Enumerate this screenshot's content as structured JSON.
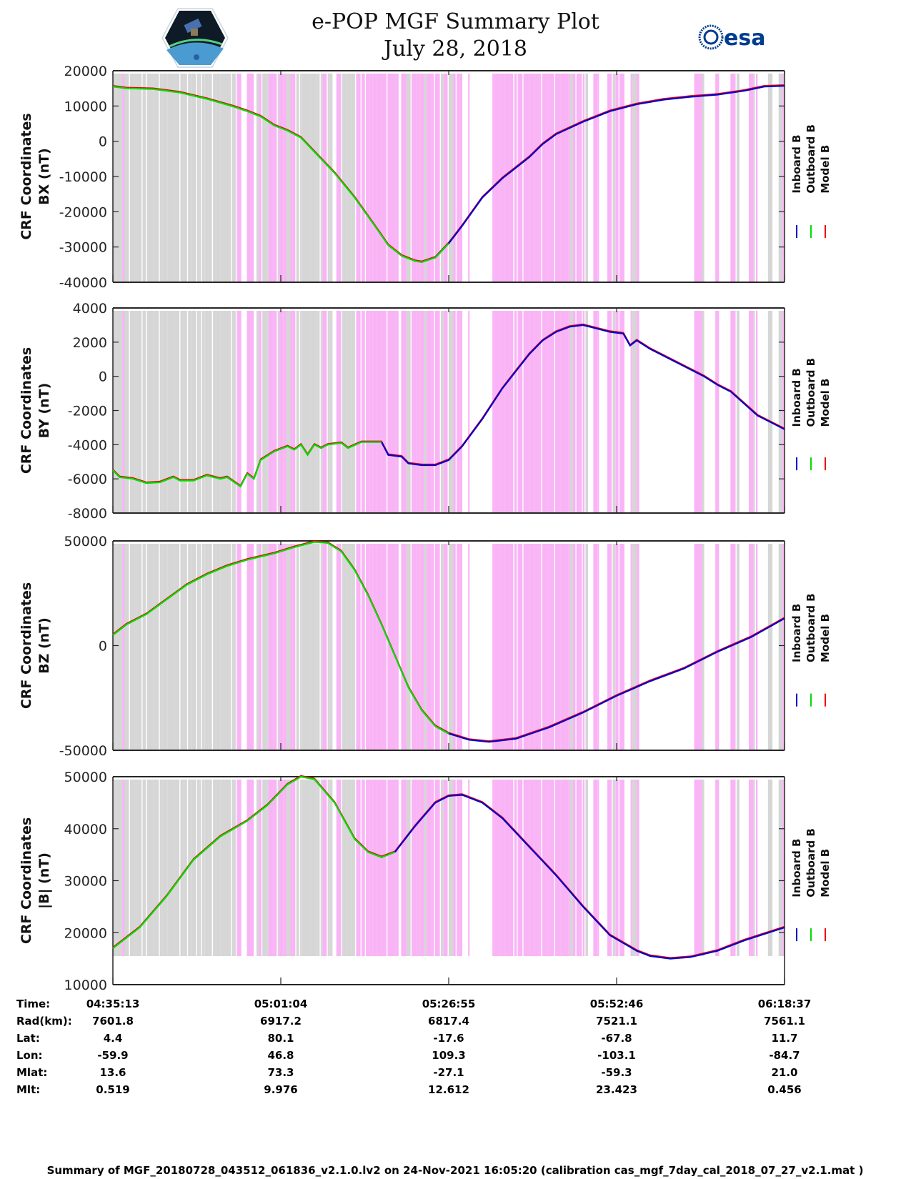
{
  "header": {
    "title": "e-POP MGF Summary Plot",
    "subtitle": "July 28, 2018",
    "logos": [
      "cassiope-mission-logo",
      "esa-logo"
    ],
    "esa_text": "esa"
  },
  "colors": {
    "inboard": "#0000cc",
    "outboard": "#00dd00",
    "model": "#ee0000",
    "shade_pink": "#f9b4f6",
    "shade_gray": "#d6d6d6",
    "axis": "#262626"
  },
  "legend": {
    "entries": [
      {
        "label": "Inboard B",
        "color_key": "inboard"
      },
      {
        "label": "Outboard B",
        "color_key": "outboard"
      },
      {
        "label": "Model B",
        "color_key": "model"
      }
    ]
  },
  "chart_data": [
    {
      "type": "line",
      "title": "",
      "ylabel": "CRF Coordinates\nBX (nT)",
      "ylabel_lines": [
        "CRF Coordinates",
        "BX (nT)"
      ],
      "xlim": [
        0,
        1
      ],
      "ylim": [
        -40000,
        20000
      ],
      "yticks": [
        20000,
        10000,
        0,
        -10000,
        -20000,
        -30000,
        -40000
      ],
      "ytick_labels": [
        "20000",
        "10000",
        "0",
        "-10000",
        "-20000",
        "-30000",
        "-40000"
      ],
      "shade_range": [
        -40000,
        20000
      ],
      "outboard_until": 0.5,
      "series_points": [
        [
          0.0,
          15500
        ],
        [
          0.02,
          15000
        ],
        [
          0.06,
          14800
        ],
        [
          0.1,
          13800
        ],
        [
          0.14,
          12000
        ],
        [
          0.18,
          9800
        ],
        [
          0.2,
          8500
        ],
        [
          0.22,
          7000
        ],
        [
          0.24,
          4500
        ],
        [
          0.26,
          3000
        ],
        [
          0.28,
          1000
        ],
        [
          0.3,
          -3000
        ],
        [
          0.33,
          -9000
        ],
        [
          0.36,
          -16000
        ],
        [
          0.39,
          -24000
        ],
        [
          0.41,
          -29500
        ],
        [
          0.43,
          -32500
        ],
        [
          0.45,
          -34000
        ],
        [
          0.46,
          -34300
        ],
        [
          0.48,
          -33000
        ],
        [
          0.5,
          -29000
        ],
        [
          0.52,
          -24000
        ],
        [
          0.55,
          -16000
        ],
        [
          0.58,
          -10500
        ],
        [
          0.6,
          -7500
        ],
        [
          0.62,
          -4500
        ],
        [
          0.64,
          -800
        ],
        [
          0.66,
          2000
        ],
        [
          0.7,
          5500
        ],
        [
          0.74,
          8500
        ],
        [
          0.78,
          10500
        ],
        [
          0.82,
          11800
        ],
        [
          0.86,
          12600
        ],
        [
          0.9,
          13200
        ],
        [
          0.94,
          14300
        ],
        [
          0.97,
          15500
        ],
        [
          1.0,
          15700
        ]
      ]
    },
    {
      "type": "line",
      "ylabel_lines": [
        "CRF Coordinates",
        "BY (nT)"
      ],
      "xlim": [
        0,
        1
      ],
      "ylim": [
        -8000,
        4000
      ],
      "yticks": [
        4000,
        2000,
        0,
        -2000,
        -4000,
        -6000,
        -8000
      ],
      "ytick_labels": [
        "4000",
        "2000",
        "0",
        "-2000",
        "-4000",
        "-6000",
        "-8000"
      ],
      "shade_range": [
        -8000,
        4000
      ],
      "outboard_until": 0.4,
      "series_points": [
        [
          0.0,
          -5500
        ],
        [
          0.01,
          -5900
        ],
        [
          0.03,
          -6000
        ],
        [
          0.05,
          -6250
        ],
        [
          0.07,
          -6200
        ],
        [
          0.09,
          -5900
        ],
        [
          0.1,
          -6100
        ],
        [
          0.12,
          -6100
        ],
        [
          0.14,
          -5800
        ],
        [
          0.16,
          -6000
        ],
        [
          0.17,
          -5900
        ],
        [
          0.19,
          -6450
        ],
        [
          0.2,
          -5700
        ],
        [
          0.21,
          -6000
        ],
        [
          0.22,
          -4900
        ],
        [
          0.24,
          -4400
        ],
        [
          0.26,
          -4100
        ],
        [
          0.27,
          -4300
        ],
        [
          0.28,
          -4000
        ],
        [
          0.29,
          -4600
        ],
        [
          0.3,
          -4000
        ],
        [
          0.31,
          -4200
        ],
        [
          0.32,
          -4000
        ],
        [
          0.34,
          -3900
        ],
        [
          0.35,
          -4200
        ],
        [
          0.37,
          -3850
        ],
        [
          0.4,
          -3850
        ],
        [
          0.41,
          -4600
        ],
        [
          0.43,
          -4700
        ],
        [
          0.44,
          -5100
        ],
        [
          0.46,
          -5200
        ],
        [
          0.48,
          -5200
        ],
        [
          0.5,
          -4900
        ],
        [
          0.52,
          -4100
        ],
        [
          0.55,
          -2500
        ],
        [
          0.58,
          -700
        ],
        [
          0.6,
          300
        ],
        [
          0.62,
          1300
        ],
        [
          0.64,
          2100
        ],
        [
          0.66,
          2600
        ],
        [
          0.68,
          2900
        ],
        [
          0.7,
          3000
        ],
        [
          0.72,
          2800
        ],
        [
          0.74,
          2600
        ],
        [
          0.76,
          2500
        ],
        [
          0.77,
          1800
        ],
        [
          0.78,
          2100
        ],
        [
          0.8,
          1600
        ],
        [
          0.84,
          800
        ],
        [
          0.88,
          0
        ],
        [
          0.9,
          -500
        ],
        [
          0.92,
          -900
        ],
        [
          0.94,
          -1600
        ],
        [
          0.96,
          -2300
        ],
        [
          0.98,
          -2700
        ],
        [
          1.0,
          -3100
        ]
      ]
    },
    {
      "type": "line",
      "ylabel_lines": [
        "CRF Coordinates",
        "BZ (nT)"
      ],
      "xlim": [
        0,
        1
      ],
      "ylim": [
        -50000,
        50000
      ],
      "yticks": [
        50000,
        0,
        -50000
      ],
      "ytick_labels": [
        "50000",
        "0",
        "-50000"
      ],
      "shade_range": [
        -50000,
        50000
      ],
      "outboard_until": 0.5,
      "series_points": [
        [
          0.0,
          5000
        ],
        [
          0.02,
          10000
        ],
        [
          0.05,
          15000
        ],
        [
          0.08,
          22000
        ],
        [
          0.11,
          29000
        ],
        [
          0.14,
          34000
        ],
        [
          0.17,
          38000
        ],
        [
          0.2,
          41000
        ],
        [
          0.24,
          44000
        ],
        [
          0.27,
          47000
        ],
        [
          0.3,
          49500
        ],
        [
          0.32,
          49000
        ],
        [
          0.34,
          45000
        ],
        [
          0.36,
          36000
        ],
        [
          0.38,
          24000
        ],
        [
          0.4,
          10000
        ],
        [
          0.42,
          -5000
        ],
        [
          0.44,
          -20000
        ],
        [
          0.46,
          -31000
        ],
        [
          0.48,
          -38500
        ],
        [
          0.5,
          -42000
        ],
        [
          0.53,
          -45000
        ],
        [
          0.56,
          -46000
        ],
        [
          0.6,
          -44500
        ],
        [
          0.65,
          -39000
        ],
        [
          0.7,
          -32000
        ],
        [
          0.75,
          -24000
        ],
        [
          0.8,
          -17000
        ],
        [
          0.85,
          -11000
        ],
        [
          0.9,
          -3000
        ],
        [
          0.95,
          4000
        ],
        [
          1.0,
          13000
        ]
      ]
    },
    {
      "type": "line",
      "ylabel_lines": [
        "CRF Coordinates",
        "|B| (nT)"
      ],
      "xlim": [
        0,
        1
      ],
      "ylim": [
        10000,
        50000
      ],
      "yticks": [
        50000,
        40000,
        30000,
        20000,
        10000
      ],
      "ytick_labels": [
        "50000",
        "40000",
        "30000",
        "20000",
        "10000"
      ],
      "shade_range": [
        15500,
        50000
      ],
      "outboard_until": 0.44,
      "series_points": [
        [
          0.0,
          17000
        ],
        [
          0.04,
          21000
        ],
        [
          0.08,
          27000
        ],
        [
          0.12,
          34000
        ],
        [
          0.16,
          38500
        ],
        [
          0.2,
          41500
        ],
        [
          0.23,
          44500
        ],
        [
          0.26,
          48500
        ],
        [
          0.28,
          50000
        ],
        [
          0.3,
          49500
        ],
        [
          0.33,
          45000
        ],
        [
          0.36,
          38000
        ],
        [
          0.38,
          35500
        ],
        [
          0.4,
          34500
        ],
        [
          0.42,
          35500
        ],
        [
          0.45,
          40500
        ],
        [
          0.48,
          45000
        ],
        [
          0.5,
          46300
        ],
        [
          0.52,
          46500
        ],
        [
          0.55,
          45000
        ],
        [
          0.58,
          42000
        ],
        [
          0.62,
          36500
        ],
        [
          0.66,
          31000
        ],
        [
          0.7,
          25000
        ],
        [
          0.74,
          19500
        ],
        [
          0.78,
          16500
        ],
        [
          0.8,
          15500
        ],
        [
          0.83,
          15000
        ],
        [
          0.86,
          15300
        ],
        [
          0.9,
          16500
        ],
        [
          0.94,
          18500
        ],
        [
          1.0,
          21000
        ]
      ]
    }
  ],
  "xaxis": {
    "ticks": [
      0,
      0.25,
      0.5,
      0.75,
      1.0
    ]
  },
  "ephemeris": {
    "row_labels": [
      "Time:",
      "Rad(km):",
      "Lat:",
      "Lon:",
      "Mlat:",
      "Mlt:"
    ],
    "columns": [
      [
        "04:35:13",
        "7601.8",
        "4.4",
        "-59.9",
        "13.6",
        "0.519"
      ],
      [
        "05:01:04",
        "6917.2",
        "80.1",
        "46.8",
        "73.3",
        "9.976"
      ],
      [
        "05:26:55",
        "6817.4",
        "-17.6",
        "109.3",
        "-27.1",
        "12.612"
      ],
      [
        "05:52:46",
        "7521.1",
        "-67.8",
        "-103.1",
        "-59.3",
        "23.423"
      ],
      [
        "06:18:37",
        "7561.1",
        "11.7",
        "-84.7",
        "21.0",
        "0.456"
      ]
    ]
  },
  "footer": {
    "text": "Summary of MGF_20180728_043512_061836_v2.1.0.lv2 on 24-Nov-2021 16:05:20 (calibration cas_mgf_7day_cal_2018_07_27_v2.1.mat )"
  }
}
